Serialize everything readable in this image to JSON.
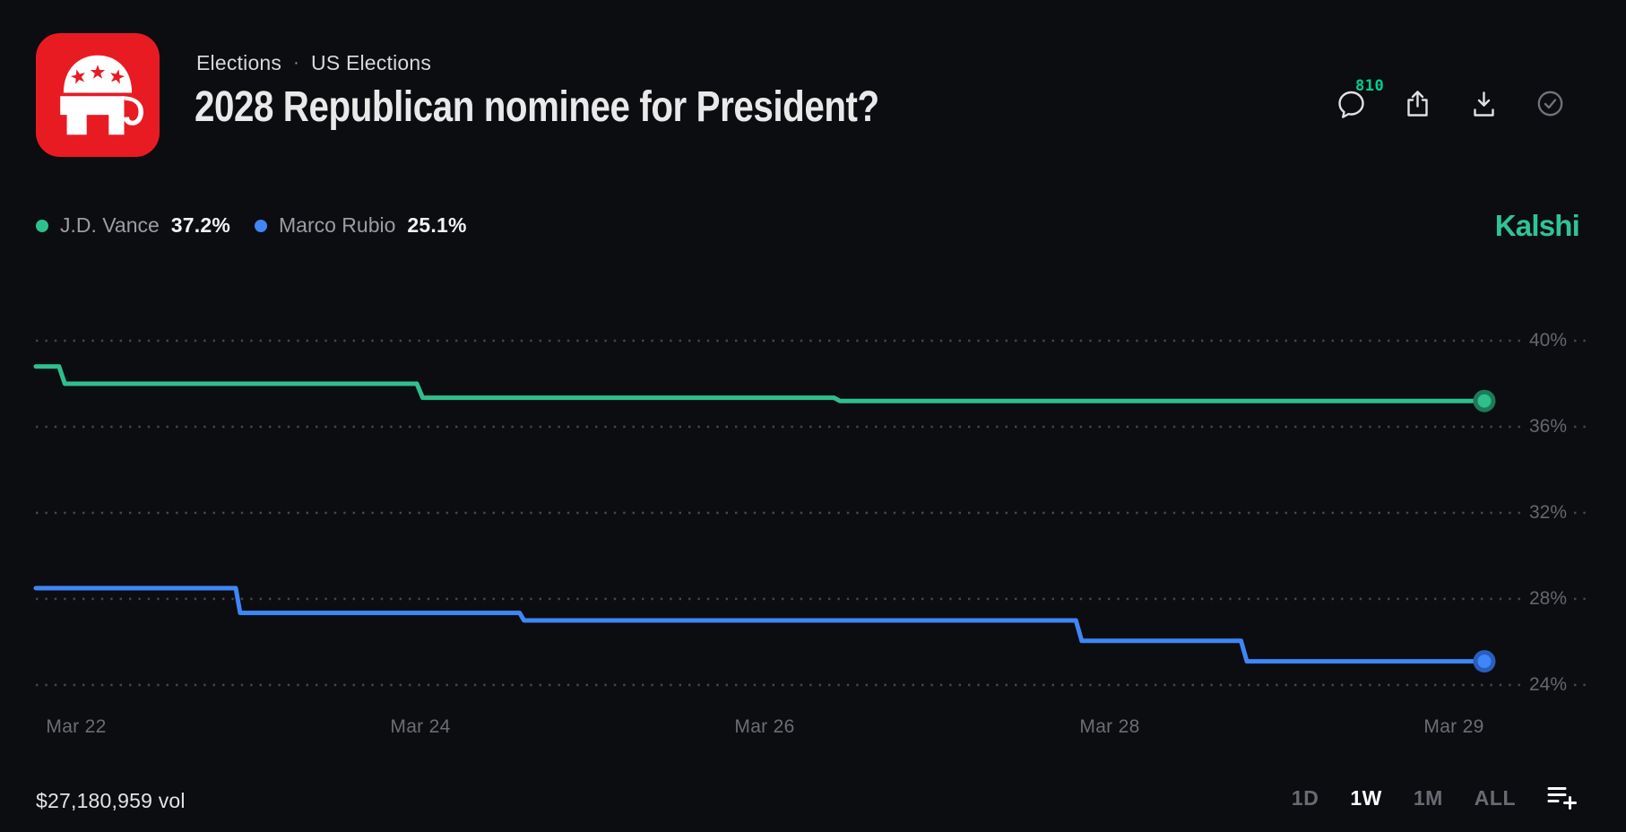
{
  "header": {
    "breadcrumb": {
      "category": "Elections",
      "separator": "·",
      "subcategory": "US Elections"
    },
    "title": "2028 Republican nominee for President?",
    "actions": {
      "comments_count": "810"
    }
  },
  "legend": {
    "series": [
      {
        "name": "J.D. Vance",
        "value": "37.2%",
        "color": "#2ec08c"
      },
      {
        "name": "Marco Rubio",
        "value": "25.1%",
        "color": "#3f86f6"
      }
    ]
  },
  "watermark": "Kalshi",
  "colors": {
    "background": "#0c0d11",
    "accent_green": "#2ec08c",
    "accent_blue": "#3f86f6",
    "gop_red": "#e81b23",
    "kalshi_logo_green": "#2fc493",
    "badge_green": "#00cf8e",
    "gridline": "#44474c"
  },
  "chart_data": {
    "type": "line",
    "title": "2028 Republican nominee for President?",
    "grid": "dotted-horizontal",
    "legend_position": "top-left",
    "x_axis": {
      "labels": [
        "Mar 22",
        "Mar 24",
        "Mar 26",
        "Mar 28",
        "Mar 29"
      ]
    },
    "y_axis": {
      "unit": "%",
      "range": [
        22.5,
        41.5
      ],
      "ticks": [
        {
          "label": "40%",
          "pct": 40
        },
        {
          "label": "36%",
          "pct": 36
        },
        {
          "label": "32%",
          "pct": 32
        },
        {
          "label": "28%",
          "pct": 28
        },
        {
          "label": "24%",
          "pct": 24
        }
      ]
    },
    "series": [
      {
        "name": "J.D. Vance",
        "color": "#2ec08c",
        "ring_color": "#1e7a58",
        "current": "37.2%",
        "points": [
          [
            0,
            38.8
          ],
          [
            0.016,
            38.8
          ],
          [
            0.02,
            38.0
          ],
          [
            0.263,
            38.0
          ],
          [
            0.267,
            37.35
          ],
          [
            0.551,
            37.35
          ],
          [
            0.555,
            37.2
          ],
          [
            1,
            37.2
          ]
        ]
      },
      {
        "name": "Marco Rubio",
        "color": "#3f86f6",
        "ring_color": "#2a5ebc",
        "current": "25.1%",
        "points": [
          [
            0,
            28.5
          ],
          [
            0.138,
            28.5
          ],
          [
            0.141,
            27.35
          ],
          [
            0.334,
            27.35
          ],
          [
            0.337,
            27.0
          ],
          [
            0.718,
            27.0
          ],
          [
            0.722,
            26.05
          ],
          [
            0.832,
            26.05
          ],
          [
            0.836,
            25.1
          ],
          [
            1,
            25.1
          ]
        ]
      }
    ]
  },
  "footer": {
    "volume": "$27,180,959 vol",
    "ranges": [
      {
        "label": "1D",
        "active": false
      },
      {
        "label": "1W",
        "active": true
      },
      {
        "label": "1M",
        "active": false
      },
      {
        "label": "ALL",
        "active": false
      }
    ]
  }
}
